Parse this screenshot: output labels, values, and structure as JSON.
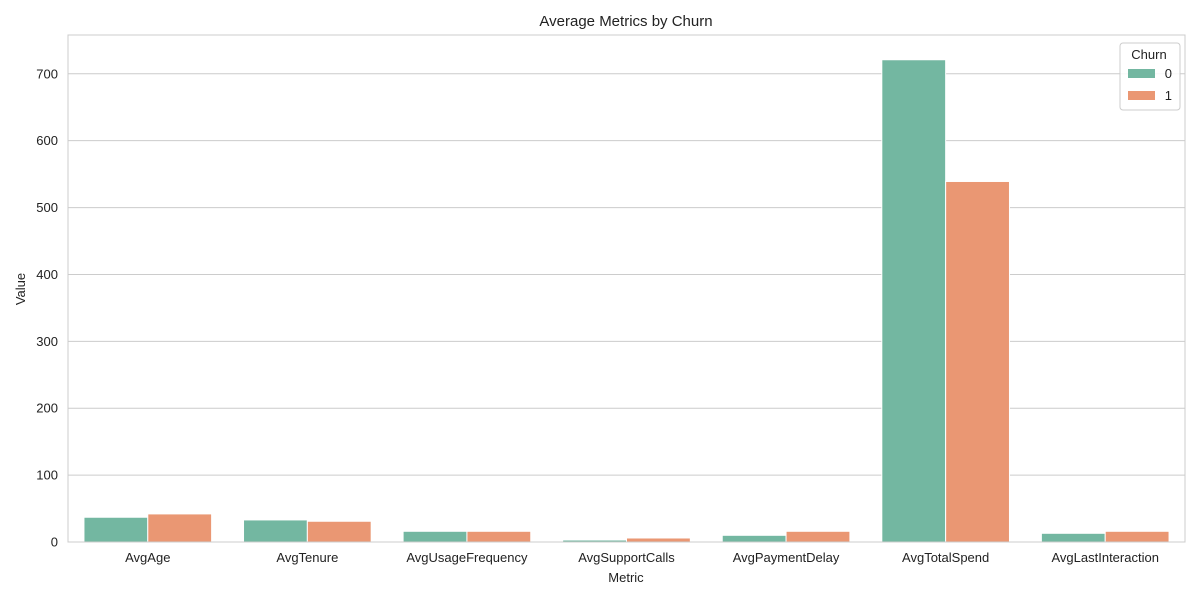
{
  "chart_data": {
    "type": "bar",
    "title": "Average Metrics by Churn",
    "xlabel": "Metric",
    "ylabel": "Value",
    "categories": [
      "AvgAge",
      "AvgTenure",
      "AvgUsageFrequency",
      "AvgSupportCalls",
      "AvgPaymentDelay",
      "AvgTotalSpend",
      "AvgLastInteraction"
    ],
    "series": [
      {
        "name": "0",
        "color": "#73b7a1",
        "values": [
          37,
          33,
          16,
          3,
          10,
          721,
          13
        ]
      },
      {
        "name": "1",
        "color": "#ea9773",
        "values": [
          42,
          31,
          16,
          6,
          16,
          539,
          16
        ]
      }
    ],
    "ylim": [
      0,
      758
    ],
    "yticks": [
      0,
      100,
      200,
      300,
      400,
      500,
      600,
      700
    ],
    "grid": true,
    "legend": {
      "title": "Churn",
      "placement": "top-right"
    }
  }
}
